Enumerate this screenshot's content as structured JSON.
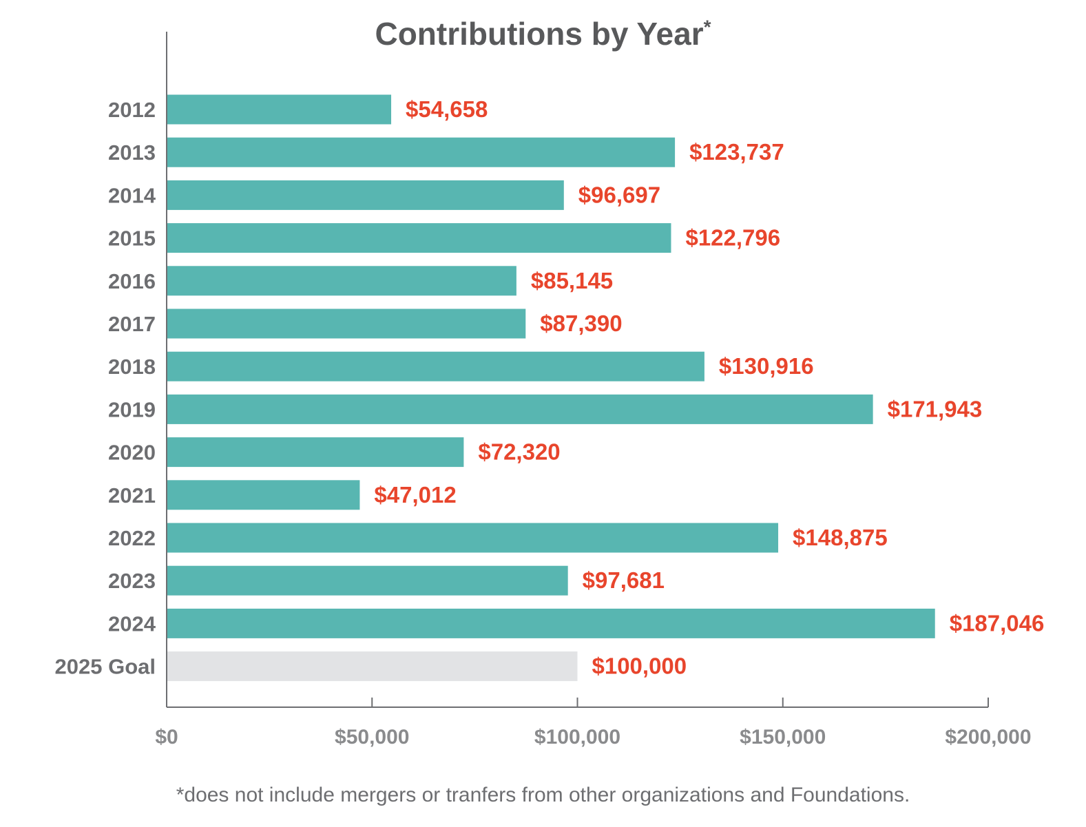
{
  "chart_data": {
    "type": "bar",
    "orientation": "horizontal",
    "title": "Contributions by Year",
    "title_mark": "*",
    "categories": [
      "2012",
      "2013",
      "2014",
      "2015",
      "2016",
      "2017",
      "2018",
      "2019",
      "2020",
      "2021",
      "2022",
      "2023",
      "2024",
      "2025 Goal"
    ],
    "values": [
      54658,
      123737,
      96697,
      122796,
      85145,
      87390,
      130916,
      171943,
      72320,
      47012,
      148875,
      97681,
      187046,
      100000
    ],
    "value_labels": [
      "$54,658",
      "$123,737",
      "$96,697",
      "$122,796",
      "$85,145",
      "$87,390",
      "$130,916",
      "$171,943",
      "$72,320",
      "$47,012",
      "$148,875",
      "$97,681",
      "$187,046",
      "$100,000"
    ],
    "xlim": [
      0,
      200000
    ],
    "x_ticks": [
      0,
      50000,
      100000,
      150000,
      200000
    ],
    "x_tick_labels": [
      "$0",
      "$50,000",
      "$100,000",
      "$150,000",
      "$200,000"
    ],
    "grid": false,
    "footnote": "*does not include mergers or tranfers from other organizations and Foundations.",
    "colors": {
      "bar": "#58b6b1",
      "goal_bar": "#e2e3e5",
      "value_label": "#e8452c",
      "axis": "#6d6e71",
      "tick_label": "#8a8b8d",
      "category_label": "#6d6e71",
      "title": "#58595b"
    }
  }
}
